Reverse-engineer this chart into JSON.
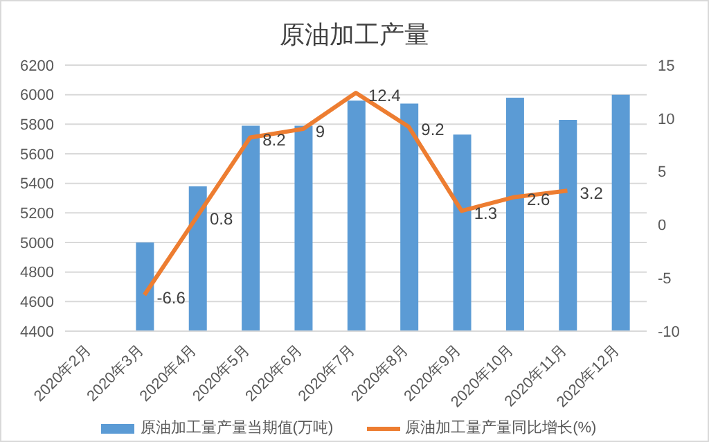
{
  "chart_data": {
    "type": "bar",
    "title": "原油加工产量",
    "categories": [
      "2020年2月",
      "2020年3月",
      "2020年4月",
      "2020年5月",
      "2020年6月",
      "2020年7月",
      "2020年8月",
      "2020年9月",
      "2020年10月",
      "2020年11月",
      "2020年12月"
    ],
    "series": [
      {
        "name": "原油加工量产量当期值(万吨)",
        "color": "#5b9bd5",
        "values": [
          null,
          5000,
          5380,
          5790,
          5790,
          5960,
          5940,
          5730,
          5980,
          5830,
          6000
        ]
      },
      {
        "name": "原油加工量产量同比增长(%)",
        "type": "line",
        "axis": "y2",
        "color": "#ed7d31",
        "values": [
          null,
          -6.6,
          0.8,
          8.2,
          9,
          12.4,
          9.2,
          1.3,
          2.6,
          3.2,
          null
        ],
        "value_labels": [
          null,
          "-6.6",
          "0.8",
          "8.2",
          "9",
          "12.4",
          "9.2",
          "1.3",
          "2.6",
          "3.2",
          null
        ]
      }
    ],
    "ylim": [
      4400,
      6200
    ],
    "yticks": [
      4400,
      4600,
      4800,
      5000,
      5200,
      5400,
      5600,
      5800,
      6000,
      6200
    ],
    "y2lim": [
      -10,
      15
    ],
    "y2ticks": [
      -10,
      -5,
      0,
      5,
      10,
      15
    ],
    "grid": "y",
    "legend": "bottom",
    "marker": "none"
  }
}
